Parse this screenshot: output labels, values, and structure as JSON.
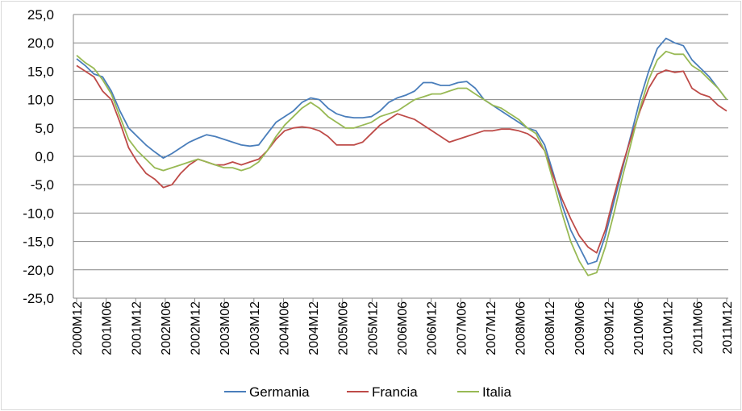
{
  "chart_data": {
    "type": "line",
    "title": "",
    "xlabel": "",
    "ylabel": "",
    "ylim": [
      -25,
      25
    ],
    "y_ticks": [
      "25,0",
      "20,0",
      "15,0",
      "10,0",
      "5,0",
      "0,0",
      "-5,0",
      "-10,0",
      "-15,0",
      "-20,0",
      "-25,0"
    ],
    "x_ticks": [
      "2000M12",
      "2001M06",
      "2001M12",
      "2002M06",
      "2002M12",
      "2003M06",
      "2003M12",
      "2004M06",
      "2004M12",
      "2005M06",
      "2005M12",
      "2006M06",
      "2006M12",
      "2007M06",
      "2007M12",
      "2008M06",
      "2008M12",
      "2009M06",
      "2009M12",
      "2010M06",
      "2010M12",
      "2011M06",
      "2011M12"
    ],
    "grid": true,
    "legend_position": "bottom",
    "series": [
      {
        "name": "Germania",
        "color": "#4a7ebb",
        "values": [
          17.2,
          16.0,
          14.5,
          14.0,
          11.5,
          8.0,
          5.0,
          3.5,
          2.0,
          0.8,
          -0.3,
          0.5,
          1.5,
          2.5,
          3.2,
          3.8,
          3.5,
          3.0,
          2.5,
          2.0,
          1.8,
          2.0,
          4.0,
          6.0,
          7.0,
          8.0,
          9.5,
          10.3,
          10.0,
          8.5,
          7.5,
          7.0,
          6.8,
          6.8,
          7.0,
          8.0,
          9.5,
          10.3,
          10.8,
          11.5,
          13.0,
          13.0,
          12.5,
          12.5,
          13.0,
          13.2,
          12.0,
          10.0,
          9.0,
          8.0,
          7.0,
          6.0,
          5.0,
          4.5,
          2.0,
          -3.0,
          -8.5,
          -13.0,
          -16.0,
          -19.0,
          -18.5,
          -14.0,
          -8.0,
          -2.0,
          4.0,
          10.0,
          15.0,
          19.0,
          20.8,
          20.0,
          19.5,
          17.0,
          15.5,
          14.0,
          12.0,
          10.0
        ]
      },
      {
        "name": "Francia",
        "color": "#be4b48",
        "values": [
          16.0,
          15.0,
          14.0,
          11.5,
          10.0,
          6.0,
          1.5,
          -1.0,
          -3.0,
          -4.0,
          -5.5,
          -5.0,
          -3.0,
          -1.5,
          -0.5,
          -1.0,
          -1.5,
          -1.5,
          -1.0,
          -1.5,
          -1.0,
          -0.5,
          1.0,
          3.0,
          4.5,
          5.0,
          5.2,
          5.0,
          4.5,
          3.5,
          2.0,
          2.0,
          2.0,
          2.5,
          4.0,
          5.5,
          6.5,
          7.5,
          7.0,
          6.5,
          5.5,
          4.5,
          3.5,
          2.5,
          3.0,
          3.5,
          4.0,
          4.5,
          4.5,
          4.8,
          4.8,
          4.5,
          4.0,
          3.0,
          1.0,
          -3.5,
          -7.5,
          -11.0,
          -14.0,
          -16.0,
          -17.0,
          -13.0,
          -7.0,
          -1.5,
          3.5,
          8.0,
          12.0,
          14.5,
          15.2,
          14.8,
          15.0,
          12.0,
          11.0,
          10.5,
          9.0,
          8.0
        ]
      },
      {
        "name": "Italia",
        "color": "#98b954",
        "values": [
          17.8,
          16.5,
          15.5,
          13.5,
          11.0,
          7.0,
          3.0,
          1.0,
          -0.5,
          -2.0,
          -2.5,
          -2.0,
          -1.5,
          -1.0,
          -0.5,
          -1.0,
          -1.5,
          -2.0,
          -2.0,
          -2.5,
          -2.0,
          -1.0,
          1.0,
          3.5,
          5.5,
          7.0,
          8.5,
          9.5,
          8.5,
          7.0,
          6.0,
          5.0,
          5.0,
          5.5,
          6.0,
          7.0,
          7.5,
          8.0,
          9.0,
          10.0,
          10.5,
          11.0,
          11.0,
          11.5,
          12.0,
          12.0,
          11.0,
          10.0,
          9.0,
          8.5,
          7.5,
          6.5,
          5.0,
          4.0,
          1.0,
          -4.5,
          -10.0,
          -15.0,
          -18.5,
          -21.0,
          -20.5,
          -16.0,
          -10.0,
          -3.5,
          2.5,
          8.5,
          13.5,
          17.0,
          18.5,
          18.0,
          18.0,
          16.0,
          15.0,
          13.5,
          12.0,
          10.0
        ]
      }
    ]
  }
}
